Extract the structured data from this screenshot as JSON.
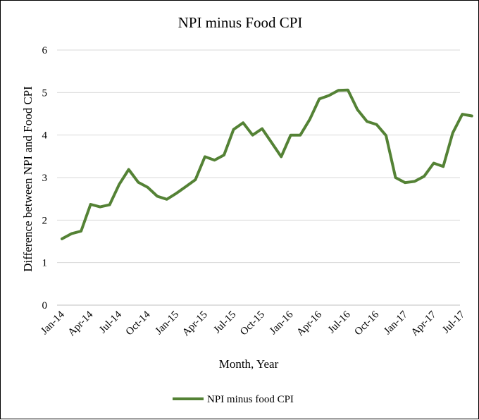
{
  "chart_data": {
    "type": "line",
    "title": "NPI minus Food CPI",
    "xlabel": "Month, Year",
    "ylabel": "Difference between NPI and Food CPI",
    "ylim": [
      0,
      6
    ],
    "yticks": [
      "0",
      "1",
      "2",
      "3",
      "4",
      "5",
      "6"
    ],
    "grid": true,
    "legend_position": "bottom",
    "line_color": "#548235",
    "x_tick_labels": [
      "Jan-14",
      "Apr-14",
      "Jul-14",
      "Oct-14",
      "Jan-15",
      "Apr-15",
      "Jul-15",
      "Oct-15",
      "Jan-16",
      "Apr-16",
      "Jul-16",
      "Oct-16",
      "Jan-17",
      "Apr-17",
      "Jul-17"
    ],
    "x": [
      "Jan-14",
      "Feb-14",
      "Mar-14",
      "Apr-14",
      "May-14",
      "Jun-14",
      "Jul-14",
      "Aug-14",
      "Sep-14",
      "Oct-14",
      "Nov-14",
      "Dec-14",
      "Jan-15",
      "Feb-15",
      "Mar-15",
      "Apr-15",
      "May-15",
      "Jun-15",
      "Jul-15",
      "Aug-15",
      "Sep-15",
      "Oct-15",
      "Nov-15",
      "Dec-15",
      "Jan-16",
      "Feb-16",
      "Mar-16",
      "Apr-16",
      "May-16",
      "Jun-16",
      "Jul-16",
      "Aug-16",
      "Sep-16",
      "Oct-16",
      "Nov-16",
      "Dec-16",
      "Jan-17",
      "Feb-17",
      "Mar-17",
      "Apr-17",
      "May-17",
      "Jun-17",
      "Jul-17",
      "Aug-17"
    ],
    "series": [
      {
        "name": "NPI minus food CPI",
        "values": [
          1.56,
          1.68,
          1.74,
          2.37,
          2.31,
          2.36,
          2.84,
          3.19,
          2.89,
          2.77,
          2.56,
          2.49,
          2.63,
          2.79,
          2.95,
          3.49,
          3.41,
          3.53,
          4.13,
          4.29,
          4.0,
          4.15,
          3.82,
          3.49,
          4.0,
          4.0,
          4.37,
          4.85,
          4.93,
          5.05,
          5.06,
          4.6,
          4.32,
          4.25,
          3.99,
          3.0,
          2.88,
          2.91,
          3.03,
          3.34,
          3.26,
          4.05,
          4.49,
          4.45
        ]
      }
    ]
  }
}
